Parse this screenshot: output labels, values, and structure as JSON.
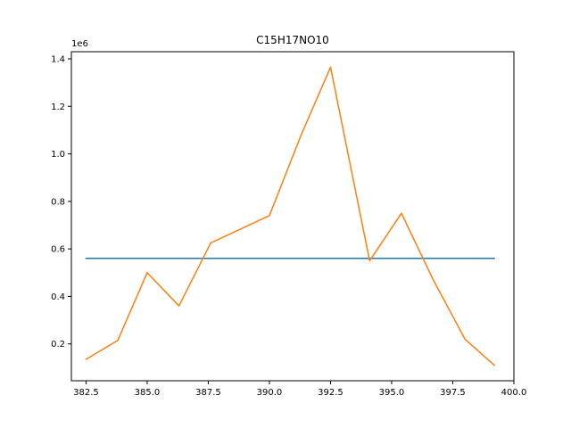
{
  "chart_data": {
    "type": "line",
    "title": "C15H17NO10",
    "xlabel": "",
    "ylabel": "",
    "y_offset_text": "1e6",
    "xlim": [
      381.9,
      400.0
    ],
    "ylim": [
      0.045,
      1.43
    ],
    "x_ticks": [
      382.5,
      385.0,
      387.5,
      390.0,
      392.5,
      395.0,
      397.5,
      400.0
    ],
    "x_tick_labels": [
      "382.5",
      "385.0",
      "387.5",
      "390.0",
      "392.5",
      "395.0",
      "397.5",
      "400.0"
    ],
    "y_ticks": [
      0.2,
      0.4,
      0.6,
      0.8,
      1.0,
      1.2,
      1.4
    ],
    "y_tick_labels": [
      "0.2",
      "0.4",
      "0.6",
      "0.8",
      "1.0",
      "1.2",
      "1.4"
    ],
    "grid": false,
    "series": [
      {
        "color": "#1f77b4",
        "x": [
          382.5,
          399.2
        ],
        "y": [
          0.56,
          0.56
        ]
      },
      {
        "color": "#ff7f0e",
        "x": [
          382.5,
          383.8,
          385.0,
          386.3,
          387.6,
          390.0,
          391.3,
          392.5,
          394.1,
          395.4,
          396.7,
          398.0,
          399.2
        ],
        "y": [
          0.135,
          0.215,
          0.5,
          0.36,
          0.625,
          0.74,
          1.08,
          1.365,
          0.55,
          0.75,
          0.47,
          0.22,
          0.11
        ]
      }
    ]
  }
}
